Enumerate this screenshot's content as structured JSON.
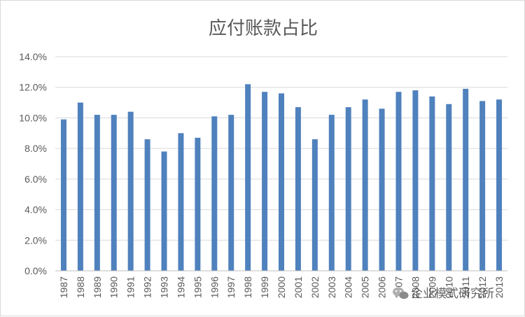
{
  "colors": {
    "bar": "#4f81bd",
    "grid": "#d9d9d9",
    "axis": "#bfbfbf",
    "text": "#595959"
  },
  "watermark": {
    "text": "企业模式研究所",
    "icon": "wechat-icon"
  },
  "chart_data": {
    "type": "bar",
    "title": "应付账款占比",
    "xlabel": "",
    "ylabel": "",
    "ylim": [
      0,
      14
    ],
    "y_unit": "%",
    "yticks": [
      "0.0%",
      "2.0%",
      "4.0%",
      "6.0%",
      "8.0%",
      "10.0%",
      "12.0%",
      "14.0%"
    ],
    "grid": true,
    "legend": "none",
    "categories": [
      "1987",
      "1988",
      "1989",
      "1990",
      "1991",
      "1992",
      "1993",
      "1994",
      "1995",
      "1996",
      "1997",
      "1998",
      "1999",
      "2000",
      "2001",
      "2002",
      "2003",
      "2004",
      "2005",
      "2006",
      "2007",
      "2008",
      "2009",
      "2010",
      "2011",
      "2012",
      "2013"
    ],
    "values": [
      9.9,
      11.0,
      10.2,
      10.2,
      10.4,
      8.6,
      7.8,
      9.0,
      8.7,
      10.1,
      10.2,
      12.2,
      11.7,
      11.6,
      10.7,
      8.6,
      10.2,
      10.7,
      11.2,
      10.6,
      11.7,
      11.8,
      11.4,
      10.9,
      11.9,
      11.1,
      11.2
    ]
  }
}
